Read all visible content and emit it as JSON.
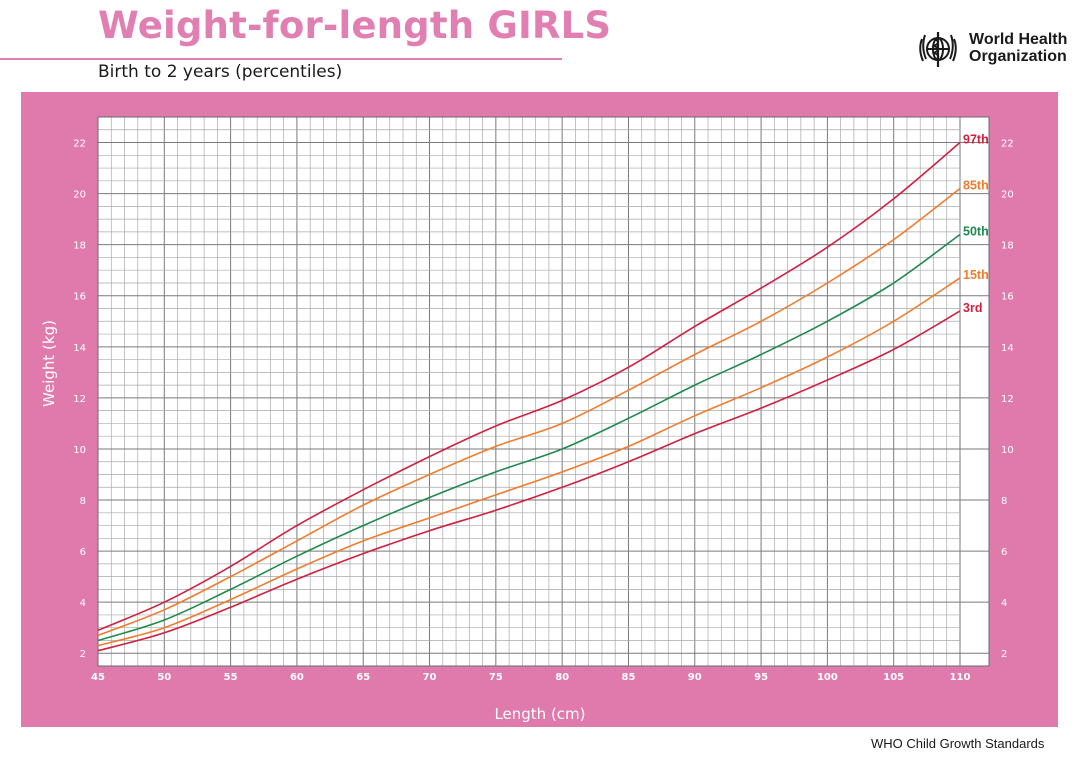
{
  "header": {
    "title": "Weight-for-length GIRLS",
    "subtitle": "Birth to 2 years (percentiles)",
    "org_name_line1": "World Health",
    "org_name_line2": "Organization"
  },
  "footer": {
    "text": "WHO Child Growth Standards"
  },
  "colors": {
    "accent_pink": "#e27fb2",
    "panel_pink": "#e07aad",
    "p3": "#d0203f",
    "p15": "#f07b2e",
    "p50": "#1f8a4c",
    "p85": "#f07b2e",
    "p97": "#d0203f"
  },
  "chart_data": {
    "type": "line",
    "title": "Weight-for-length GIRLS",
    "subtitle": "Birth to 2 years (percentiles)",
    "xlabel": "Length (cm)",
    "ylabel": "Weight (kg)",
    "xlim": [
      45,
      110
    ],
    "ylim": [
      1.5,
      23
    ],
    "x_ticks": [
      "45",
      "50",
      "55",
      "60",
      "65",
      "70",
      "75",
      "80",
      "85",
      "90",
      "95",
      "100",
      "105",
      "110"
    ],
    "y_ticks": [
      "2",
      "4",
      "6",
      "8",
      "10",
      "12",
      "14",
      "16",
      "18",
      "20",
      "22"
    ],
    "grid": true,
    "minor_grid_x": 1,
    "minor_grid_y": 0.5,
    "x": [
      45,
      50,
      55,
      60,
      65,
      70,
      75,
      80,
      85,
      90,
      95,
      100,
      105,
      110
    ],
    "series": [
      {
        "name": "3rd",
        "color_key": "p3",
        "values": [
          2.1,
          2.8,
          3.8,
          4.9,
          5.9,
          6.8,
          7.6,
          8.5,
          9.5,
          10.6,
          11.6,
          12.7,
          13.9,
          15.4
        ]
      },
      {
        "name": "15th",
        "color_key": "p15",
        "values": [
          2.3,
          3.0,
          4.1,
          5.3,
          6.4,
          7.3,
          8.2,
          9.1,
          10.1,
          11.3,
          12.4,
          13.6,
          15.0,
          16.7
        ]
      },
      {
        "name": "50th",
        "color_key": "p50",
        "values": [
          2.5,
          3.3,
          4.5,
          5.8,
          7.0,
          8.1,
          9.1,
          10.0,
          11.2,
          12.5,
          13.7,
          15.0,
          16.5,
          18.4
        ]
      },
      {
        "name": "85th",
        "color_key": "p85",
        "values": [
          2.7,
          3.7,
          5.0,
          6.4,
          7.8,
          9.0,
          10.1,
          11.0,
          12.3,
          13.7,
          15.0,
          16.5,
          18.2,
          20.2
        ]
      },
      {
        "name": "97th",
        "color_key": "p97",
        "values": [
          2.9,
          4.0,
          5.4,
          7.0,
          8.4,
          9.7,
          10.9,
          11.9,
          13.2,
          14.8,
          16.3,
          17.9,
          19.8,
          22.0
        ]
      }
    ]
  }
}
